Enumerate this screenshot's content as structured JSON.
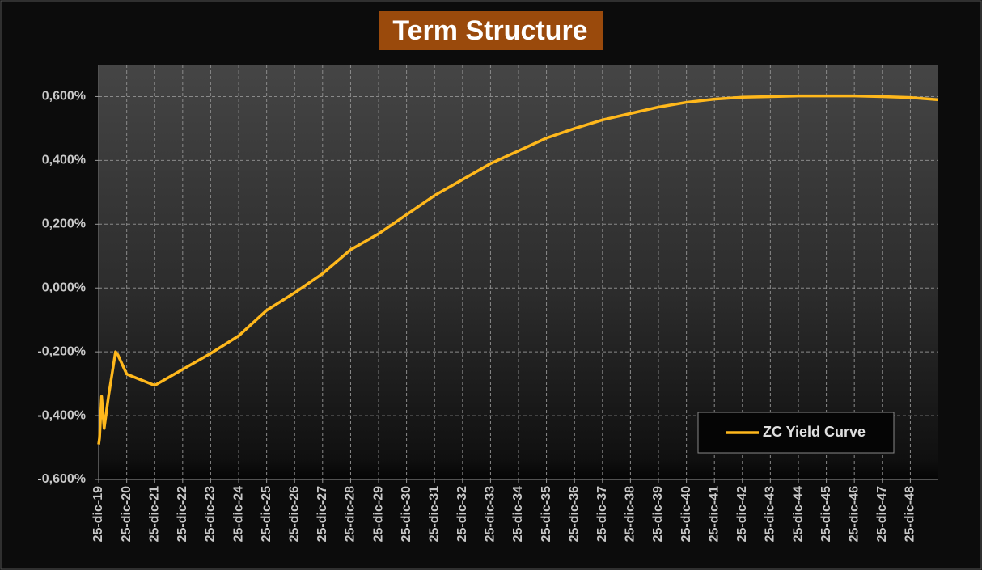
{
  "chart_data": {
    "type": "line",
    "title": "Term Structure",
    "x": [
      "2019-12-25",
      "2020-01-05",
      "2020-02-01",
      "2020-03-05",
      "2020-05-01",
      "2020-08-01",
      "2020-09-01",
      "2020-12-25",
      "2021-12-25",
      "2022-12-25",
      "2023-12-25",
      "2024-12-25",
      "2025-12-25",
      "2026-12-25",
      "2027-12-25",
      "2028-12-25",
      "2029-12-25",
      "2030-12-25",
      "2031-12-25",
      "2032-12-25",
      "2033-12-25",
      "2034-12-25",
      "2035-12-25",
      "2036-12-25",
      "2037-12-25",
      "2038-12-25",
      "2039-12-25",
      "2040-12-25",
      "2041-12-25",
      "2042-12-25",
      "2043-12-25",
      "2044-12-25",
      "2045-12-25",
      "2046-12-25",
      "2047-12-25",
      "2048-12-25",
      "2049-12-25"
    ],
    "series": [
      {
        "name": "ZC Yield Curve",
        "color": "#ffb81c",
        "values": [
          -0.49,
          -0.47,
          -0.34,
          -0.44,
          -0.34,
          -0.2,
          -0.21,
          -0.27,
          -0.305,
          -0.255,
          -0.205,
          -0.15,
          -0.07,
          -0.015,
          0.045,
          0.12,
          0.17,
          0.23,
          0.29,
          0.34,
          0.39,
          0.43,
          0.47,
          0.5,
          0.527,
          0.547,
          0.567,
          0.582,
          0.592,
          0.598,
          0.6,
          0.602,
          0.602,
          0.602,
          0.6,
          0.597,
          0.59
        ]
      }
    ],
    "xlim": [
      "2019-12-25",
      "2049-12-25"
    ],
    "xticks": [
      {
        "value": "2019-12-25",
        "label": "25-dic-19"
      },
      {
        "value": "2020-12-25",
        "label": "25-dic-20"
      },
      {
        "value": "2021-12-25",
        "label": "25-dic-21"
      },
      {
        "value": "2022-12-25",
        "label": "25-dic-22"
      },
      {
        "value": "2023-12-25",
        "label": "25-dic-23"
      },
      {
        "value": "2024-12-25",
        "label": "25-dic-24"
      },
      {
        "value": "2025-12-25",
        "label": "25-dic-25"
      },
      {
        "value": "2026-12-25",
        "label": "25-dic-26"
      },
      {
        "value": "2027-12-25",
        "label": "25-dic-27"
      },
      {
        "value": "2028-12-25",
        "label": "25-dic-28"
      },
      {
        "value": "2029-12-25",
        "label": "25-dic-29"
      },
      {
        "value": "2030-12-25",
        "label": "25-dic-30"
      },
      {
        "value": "2031-12-25",
        "label": "25-dic-31"
      },
      {
        "value": "2032-12-25",
        "label": "25-dic-32"
      },
      {
        "value": "2033-12-25",
        "label": "25-dic-33"
      },
      {
        "value": "2034-12-25",
        "label": "25-dic-34"
      },
      {
        "value": "2035-12-25",
        "label": "25-dic-35"
      },
      {
        "value": "2036-12-25",
        "label": "25-dic-36"
      },
      {
        "value": "2037-12-25",
        "label": "25-dic-37"
      },
      {
        "value": "2038-12-25",
        "label": "25-dic-38"
      },
      {
        "value": "2039-12-25",
        "label": "25-dic-39"
      },
      {
        "value": "2040-12-25",
        "label": "25-dic-40"
      },
      {
        "value": "2041-12-25",
        "label": "25-dic-41"
      },
      {
        "value": "2042-12-25",
        "label": "25-dic-42"
      },
      {
        "value": "2043-12-25",
        "label": "25-dic-43"
      },
      {
        "value": "2044-12-25",
        "label": "25-dic-44"
      },
      {
        "value": "2045-12-25",
        "label": "25-dic-45"
      },
      {
        "value": "2046-12-25",
        "label": "25-dic-46"
      },
      {
        "value": "2047-12-25",
        "label": "25-dic-47"
      },
      {
        "value": "2048-12-25",
        "label": "25-dic-48"
      }
    ],
    "ylim": [
      -0.6,
      0.7
    ],
    "yticks": [
      {
        "value": -0.6,
        "label": "-0,600%"
      },
      {
        "value": -0.4,
        "label": "-0,400%"
      },
      {
        "value": -0.2,
        "label": "-0,200%"
      },
      {
        "value": 0,
        "label": "0,000%"
      },
      {
        "value": 0.2,
        "label": "0,200%"
      },
      {
        "value": 0.4,
        "label": "0,400%"
      },
      {
        "value": 0.6,
        "label": "0,600%"
      }
    ],
    "grid": true,
    "legend": "lower right"
  }
}
